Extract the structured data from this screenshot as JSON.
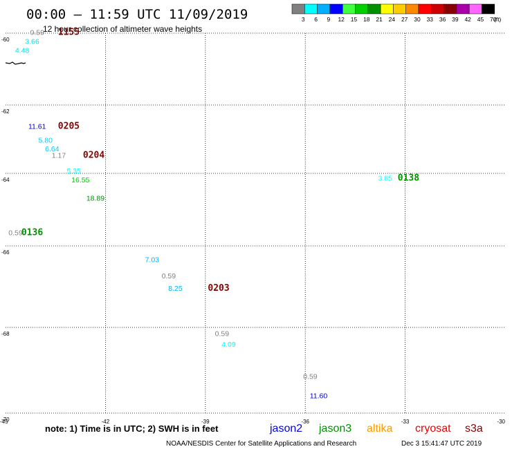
{
  "header": {
    "title": "00:00 – 11:59 UTC 11/09/2019",
    "subtitle": "12 hour collection of altimeter wave heights"
  },
  "legend": {
    "unit": "(ft)",
    "bins": [
      {
        "label": "3",
        "color": "#808080"
      },
      {
        "label": "6",
        "color": "#00ffff"
      },
      {
        "label": "9",
        "color": "#00b0ff"
      },
      {
        "label": "12",
        "color": "#0000ff"
      },
      {
        "label": "15",
        "color": "#40ff40"
      },
      {
        "label": "18",
        "color": "#00d000"
      },
      {
        "label": "21",
        "color": "#009000"
      },
      {
        "label": "24",
        "color": "#ffff00"
      },
      {
        "label": "27",
        "color": "#ffcc00"
      },
      {
        "label": "30",
        "color": "#ff8800"
      },
      {
        "label": "33",
        "color": "#ff0000"
      },
      {
        "label": "36",
        "color": "#cc0000"
      },
      {
        "label": "39",
        "color": "#880000"
      },
      {
        "label": "42",
        "color": "#aa00aa"
      },
      {
        "label": "45",
        "color": "#ff66ff"
      },
      {
        "label": "70",
        "color": "#000000"
      }
    ]
  },
  "axes": {
    "lon_ticks": [
      "-45",
      "-42",
      "-39",
      "-36",
      "-33",
      "-30"
    ],
    "lat_ticks": [
      "-60",
      "-62",
      "-64",
      "-66",
      "-68",
      "-70"
    ]
  },
  "observations": [
    {
      "lon": -44.05,
      "lat": -60.05,
      "value": "0.59",
      "color": "#808080"
    },
    {
      "lon": -44.2,
      "lat": -60.3,
      "value": "3.66",
      "color": "#00e5e5"
    },
    {
      "lon": -44.5,
      "lat": -60.55,
      "value": "4.48",
      "color": "#00e5e5"
    },
    {
      "lon": -44.05,
      "lat": -62.7,
      "value": "11.61",
      "color": "#0000cc"
    },
    {
      "lon": -43.8,
      "lat": -63.1,
      "value": "5.80",
      "color": "#00ccff"
    },
    {
      "lon": -43.6,
      "lat": -63.35,
      "value": "6.64",
      "color": "#00ccff"
    },
    {
      "lon": -43.4,
      "lat": -63.55,
      "value": "1.17",
      "color": "#808080"
    },
    {
      "lon": -42.95,
      "lat": -64.0,
      "value": "5.35",
      "color": "#00ffff"
    },
    {
      "lon": -42.75,
      "lat": -64.25,
      "value": "16.55",
      "color": "#00cc00"
    },
    {
      "lon": -42.3,
      "lat": -64.75,
      "value": "18.89",
      "color": "#009000"
    },
    {
      "lon": -44.7,
      "lat": -65.7,
      "value": "0.59",
      "color": "#808080"
    },
    {
      "lon": -40.6,
      "lat": -66.4,
      "value": "7.03",
      "color": "#00b0ff"
    },
    {
      "lon": -40.1,
      "lat": -66.8,
      "value": "0.59",
      "color": "#808080"
    },
    {
      "lon": -39.9,
      "lat": -67.1,
      "value": "8.25",
      "color": "#00b0ff"
    },
    {
      "lon": -38.5,
      "lat": -68.2,
      "value": "0.59",
      "color": "#808080"
    },
    {
      "lon": -38.3,
      "lat": -68.45,
      "value": "4.09",
      "color": "#00ffff"
    },
    {
      "lon": -35.85,
      "lat": -69.2,
      "value": "0.59",
      "color": "#808080"
    },
    {
      "lon": -35.6,
      "lat": -69.65,
      "value": "11.60",
      "color": "#0000cc"
    },
    {
      "lon": -33.6,
      "lat": -64.2,
      "value": "3.85",
      "color": "#00ffff"
    }
  ],
  "pass_times": [
    {
      "lon": -43.1,
      "lat": -60.05,
      "time": "1155",
      "color": "#880000"
    },
    {
      "lon": -43.1,
      "lat": -62.7,
      "time": "0205",
      "color": "#880000"
    },
    {
      "lon": -42.35,
      "lat": -63.55,
      "time": "0204",
      "color": "#880000"
    },
    {
      "lon": -44.2,
      "lat": -65.7,
      "time": "0136",
      "color": "#009000"
    },
    {
      "lon": -38.6,
      "lat": -67.1,
      "time": "0203",
      "color": "#880000"
    },
    {
      "lon": -32.9,
      "lat": -64.2,
      "time": "0138",
      "color": "#009000"
    }
  ],
  "footer": {
    "note": "note: 1) Time is in UTC; 2) SWH is in feet",
    "satellites": [
      {
        "name": "jason2",
        "color": "#0000ee"
      },
      {
        "name": "jason3",
        "color": "#009000"
      },
      {
        "name": "altika",
        "color": "#ff9900"
      },
      {
        "name": "cryosat",
        "color": "#ee0000"
      },
      {
        "name": "s3a",
        "color": "#880000"
      }
    ],
    "credit": "NOAA/NESDIS Center for Satellite Applications and Research",
    "timestamp": "Dec  3 15:41:47 UTC 2019"
  }
}
